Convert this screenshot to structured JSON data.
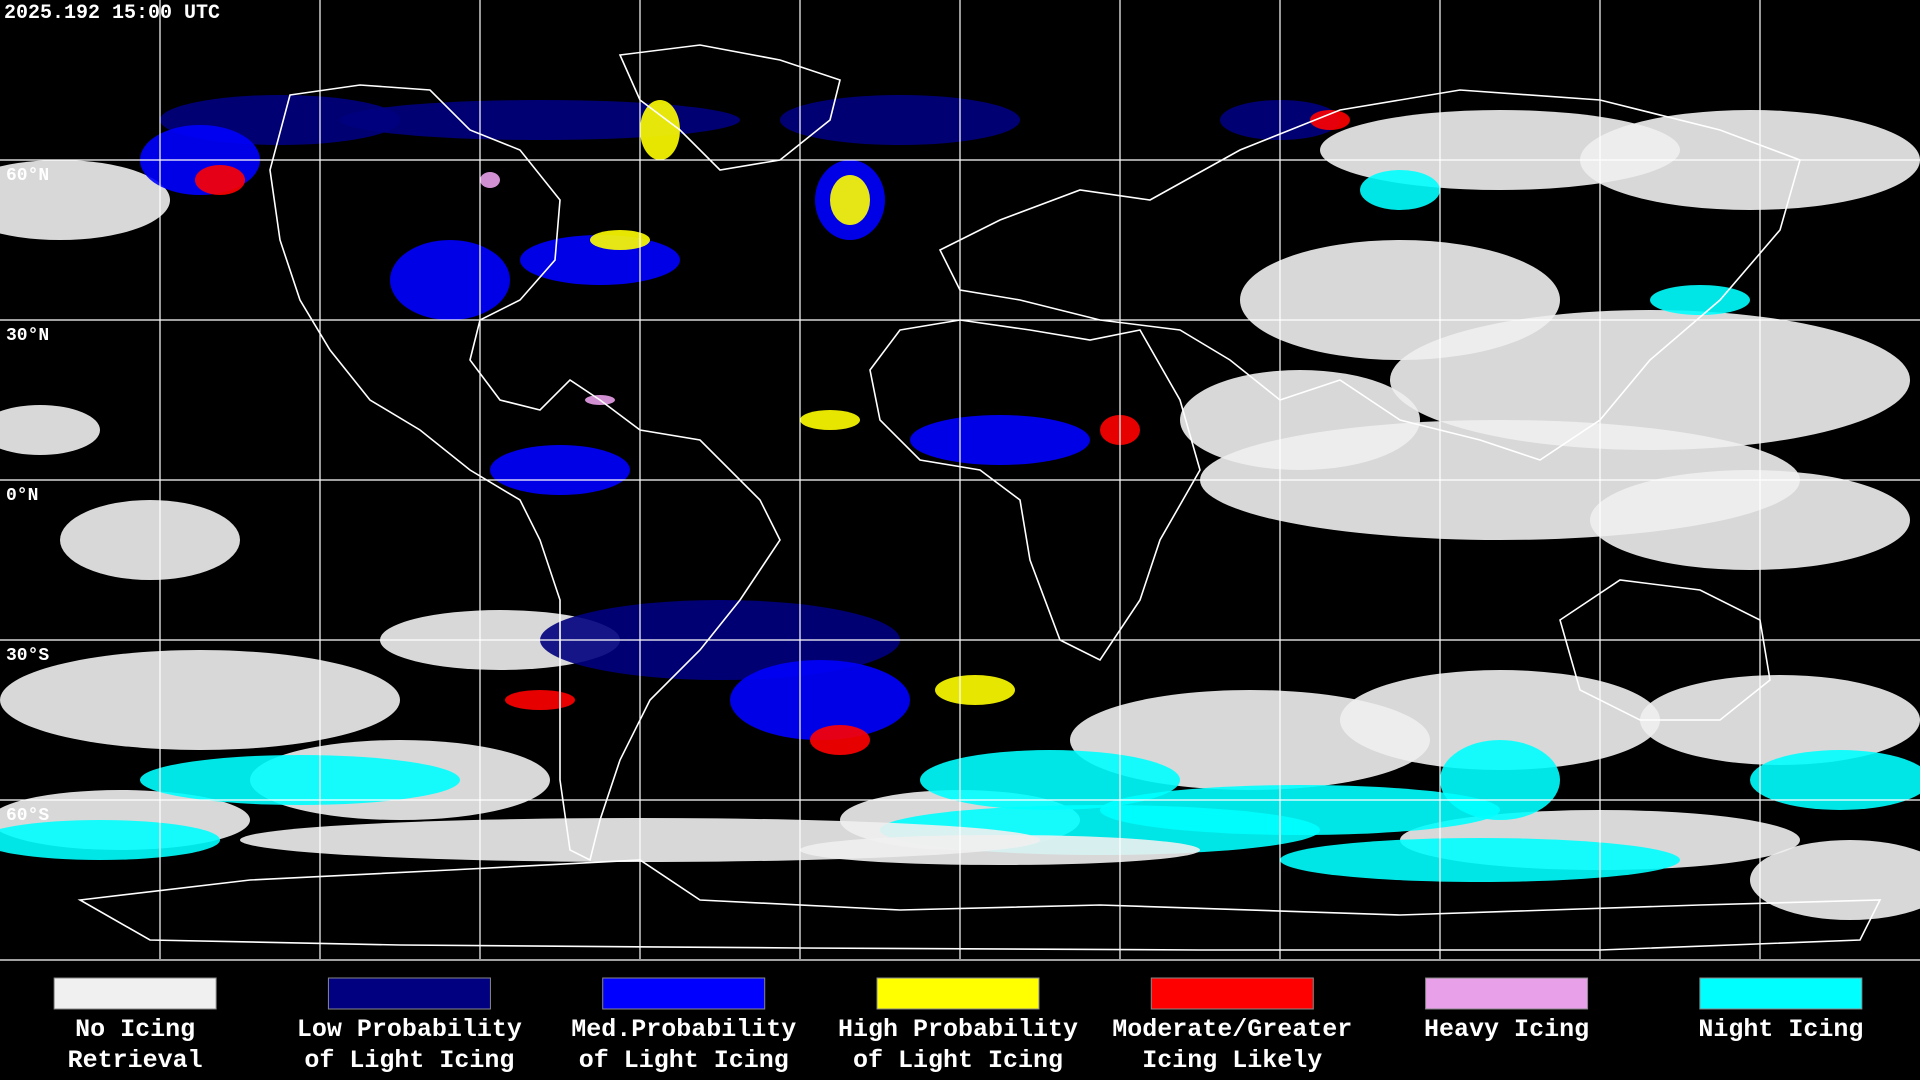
{
  "timestamp": "2025.192 15:00 UTC",
  "latitude_labels": [
    "60°N",
    "30°N",
    "0°N",
    "30°S",
    "60°S"
  ],
  "legend": [
    {
      "label": [
        "No Icing",
        "Retrieval"
      ],
      "color": "#f0f0f0"
    },
    {
      "label": [
        "Low Probability",
        "of Light Icing"
      ],
      "color": "#000080"
    },
    {
      "label": [
        "Med.Probability",
        "of Light Icing"
      ],
      "color": "#0000ff"
    },
    {
      "label": [
        "High Probability",
        "of Light Icing"
      ],
      "color": "#ffff00"
    },
    {
      "label": [
        "Moderate/Greater",
        "Icing Likely"
      ],
      "color": "#ff0000"
    },
    {
      "label": [
        "Heavy Icing",
        ""
      ],
      "color": "#e8a0e8"
    },
    {
      "label": [
        "Night Icing",
        ""
      ],
      "color": "#00ffff"
    }
  ]
}
